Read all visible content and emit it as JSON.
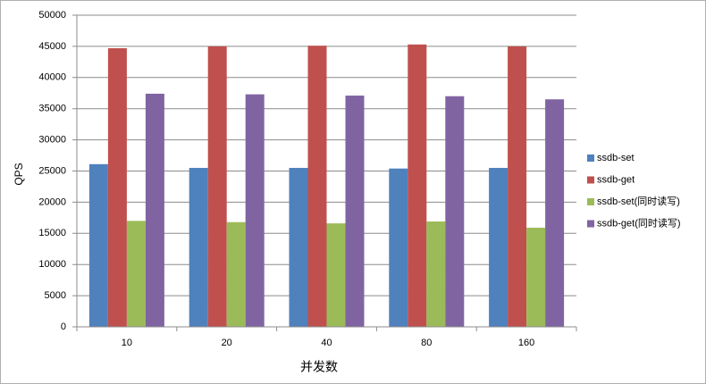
{
  "chart_data": {
    "type": "bar",
    "x_label": "并发数",
    "y_label": "QPS",
    "categories": [
      "10",
      "20",
      "40",
      "80",
      "160"
    ],
    "series": [
      {
        "name": "ssdb-set",
        "color": "#4f81bd",
        "values": [
          26100,
          25500,
          25500,
          25400,
          25500
        ]
      },
      {
        "name": "ssdb-get",
        "color": "#c0504d",
        "values": [
          44700,
          45000,
          45100,
          45300,
          45000
        ]
      },
      {
        "name": "ssdb-set(同时读写)",
        "color": "#9bbb59",
        "values": [
          17000,
          16800,
          16600,
          16900,
          15900
        ]
      },
      {
        "name": "ssdb-get(同时读写)",
        "color": "#8064a2",
        "values": [
          37400,
          37300,
          37100,
          37000,
          36500
        ]
      }
    ],
    "ylim": [
      0,
      50000
    ],
    "yticks": [
      0,
      5000,
      10000,
      15000,
      20000,
      25000,
      30000,
      35000,
      40000,
      45000,
      50000
    ],
    "grid": true,
    "legend": "right"
  }
}
